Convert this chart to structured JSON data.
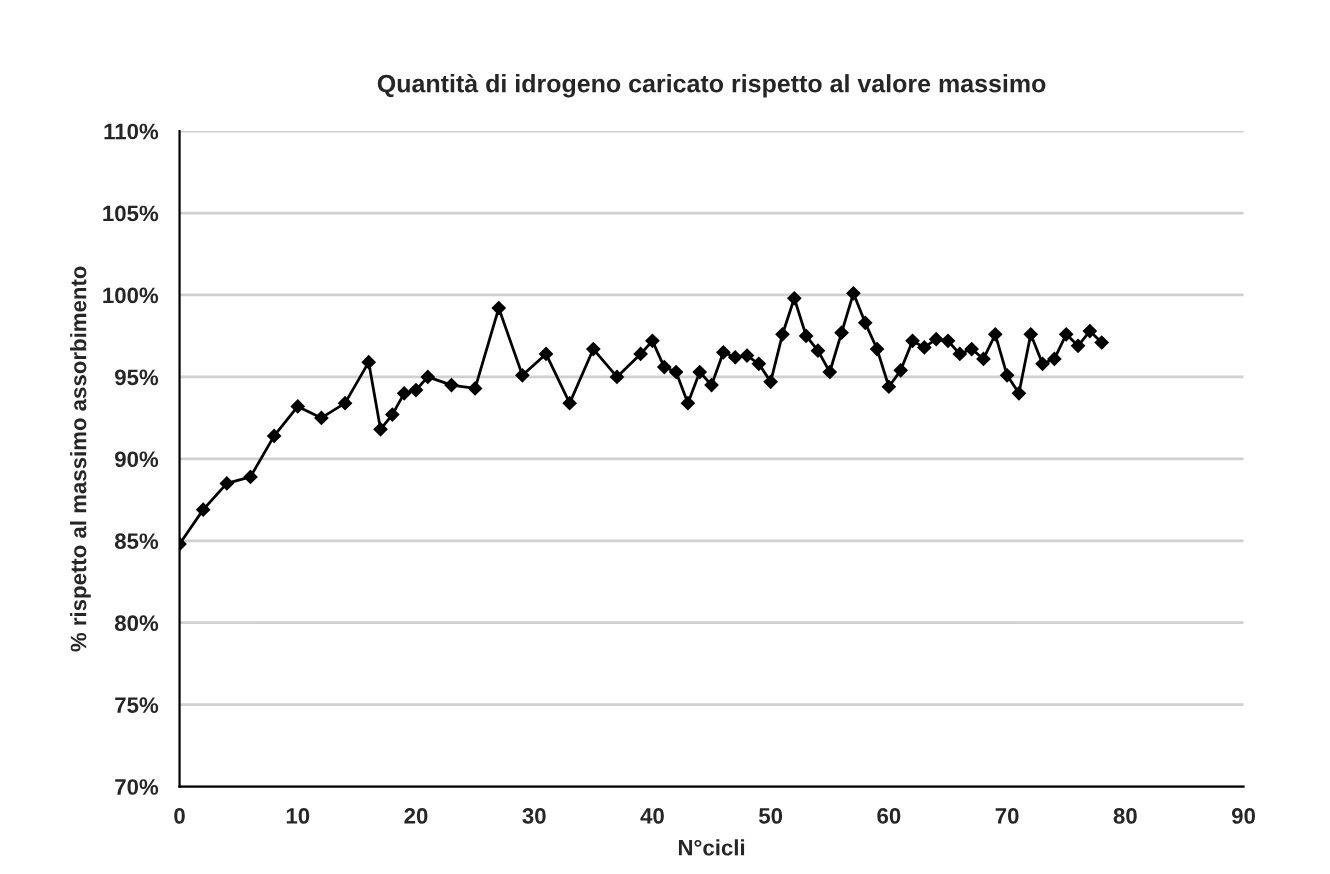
{
  "chart_data": {
    "type": "line",
    "title": "Quantità di idrogeno caricato rispetto al valore massimo",
    "xlabel": "N°cicli",
    "ylabel": "% rispetto al massimo assorbimento",
    "x": [
      0,
      2,
      4,
      6,
      8,
      10,
      12,
      14,
      16,
      17,
      18,
      19,
      20,
      21,
      23,
      25,
      27,
      29,
      31,
      33,
      35,
      37,
      39,
      40,
      41,
      42,
      43,
      44,
      45,
      46,
      47,
      48,
      49,
      50,
      51,
      52,
      53,
      54,
      55,
      56,
      57,
      58,
      59,
      60,
      61,
      62,
      63,
      64,
      65,
      66,
      67,
      68,
      69,
      70,
      71,
      72,
      73,
      74,
      75,
      76,
      77,
      78
    ],
    "series": [
      {
        "color": "#000000",
        "values": [
          84.8,
          86.9,
          88.5,
          88.9,
          91.4,
          93.2,
          92.5,
          93.4,
          95.9,
          91.8,
          92.7,
          94.0,
          94.2,
          95.0,
          94.5,
          94.3,
          99.2,
          95.1,
          96.4,
          93.4,
          96.7,
          95.0,
          96.4,
          97.2,
          95.6,
          95.3,
          93.4,
          95.3,
          94.5,
          96.5,
          96.2,
          96.3,
          95.8,
          94.7,
          97.6,
          99.8,
          97.5,
          96.6,
          95.3,
          97.7,
          100.1,
          98.3,
          96.7,
          94.4,
          95.4,
          97.2,
          96.8,
          97.3,
          97.2,
          96.4,
          96.7,
          96.1,
          97.6,
          95.1,
          94.0,
          97.6,
          95.8,
          96.1,
          97.6,
          96.9,
          97.8,
          97.1
        ]
      }
    ],
    "xlim": [
      0,
      90
    ],
    "xticks": [
      0,
      10,
      20,
      30,
      40,
      50,
      60,
      70,
      80,
      90
    ],
    "ylim": [
      70,
      110
    ],
    "yticks": [
      {
        "value": 70,
        "label": "70%"
      },
      {
        "value": 75,
        "label": "75%"
      },
      {
        "value": 80,
        "label": "80%"
      },
      {
        "value": 85,
        "label": "85%"
      },
      {
        "value": 90,
        "label": "90%"
      },
      {
        "value": 95,
        "label": "95%"
      },
      {
        "value": 100,
        "label": "100%"
      },
      {
        "value": 105,
        "label": "105%"
      },
      {
        "value": 110,
        "label": "110%"
      }
    ],
    "grid": "y",
    "marker": "diamond",
    "line_style": "solid"
  }
}
